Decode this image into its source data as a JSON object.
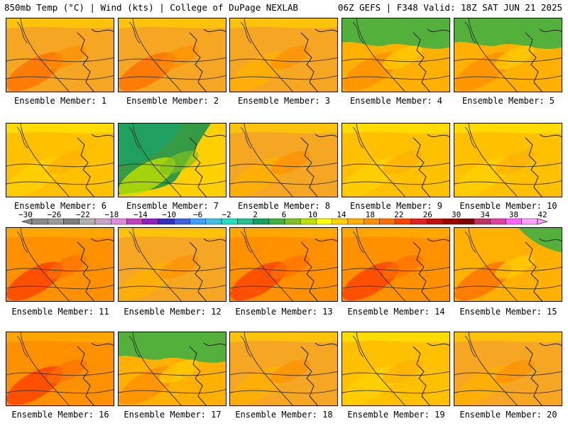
{
  "header": {
    "left": "850mb Temp (°C) | Wind (kts) | College of DuPage NEXLAB",
    "right": "06Z GEFS | F348 Valid: 18Z SAT JUN 21 2025"
  },
  "colorbar": {
    "tick_labels": [
      "−30",
      "−26",
      "−22",
      "−18",
      "−14",
      "−10",
      "−6",
      "−2",
      "2",
      "6",
      "10",
      "14",
      "18",
      "22",
      "26",
      "30",
      "34",
      "38",
      "42"
    ],
    "colors": [
      "#8a8a8a",
      "#9a9a9a",
      "#7d7d7d",
      "#b0b0b0",
      "#c8a2c8",
      "#e08ae0",
      "#c040c0",
      "#9020c0",
      "#3030c0",
      "#4060e0",
      "#40a0ff",
      "#40c0e0",
      "#20e0c0",
      "#20c090",
      "#10a060",
      "#40b040",
      "#80c020",
      "#c0e000",
      "#ffff00",
      "#ffd000",
      "#ffb000",
      "#ff9000",
      "#ff7000",
      "#ff4000",
      "#e02020",
      "#c01010",
      "#a00000",
      "#800000",
      "#c03060",
      "#e040a0",
      "#ff60ff",
      "#ffa0ff"
    ]
  },
  "members": [
    {
      "label": "Ensemble Member: 1",
      "theme": "warm-sw"
    },
    {
      "label": "Ensemble Member: 2",
      "theme": "warm-sw"
    },
    {
      "label": "Ensemble Member: 3",
      "theme": "warm"
    },
    {
      "label": "Ensemble Member: 4",
      "theme": "cool-north"
    },
    {
      "label": "Ensemble Member: 5",
      "theme": "cool-north"
    },
    {
      "label": "Ensemble Member: 6",
      "theme": "mild"
    },
    {
      "label": "Ensemble Member: 7",
      "theme": "cold"
    },
    {
      "label": "Ensemble Member: 8",
      "theme": "warm"
    },
    {
      "label": "Ensemble Member: 9",
      "theme": "mild"
    },
    {
      "label": "Ensemble Member: 10",
      "theme": "mild"
    },
    {
      "label": "Ensemble Member: 11",
      "theme": "hot"
    },
    {
      "label": "Ensemble Member: 12",
      "theme": "warm"
    },
    {
      "label": "Ensemble Member: 13",
      "theme": "hot"
    },
    {
      "label": "Ensemble Member: 14",
      "theme": "hot"
    },
    {
      "label": "Ensemble Member: 15",
      "theme": "cool-ne"
    },
    {
      "label": "Ensemble Member: 16",
      "theme": "hot"
    },
    {
      "label": "Ensemble Member: 17",
      "theme": "cool-north"
    },
    {
      "label": "Ensemble Member: 18",
      "theme": "warm"
    },
    {
      "label": "Ensemble Member: 19",
      "theme": "mild"
    },
    {
      "label": "Ensemble Member: 20",
      "theme": "warm"
    }
  ]
}
